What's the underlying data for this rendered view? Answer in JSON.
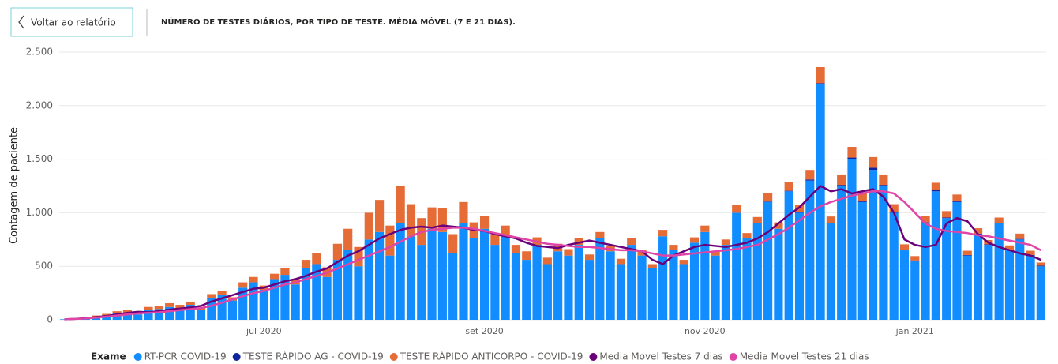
{
  "header": {
    "back_button": "Voltar ao relatório"
  },
  "chart_data": {
    "type": "bar",
    "stacked": true,
    "title": "NÚMERO DE TESTES DIÁRIOS, POR TIPO DE TESTE. MÉDIA MÓVEL (7 E 21 DIAS).",
    "y_label": "Contagem de paciente",
    "legend_title": "Exame",
    "grid": true,
    "legend": "bottom",
    "ylim": [
      0,
      2500
    ],
    "yticks": [
      0,
      500,
      {
        "value": 1000,
        "label": "1.000"
      },
      {
        "value": 1500,
        "label": "1.500"
      },
      {
        "value": 2000,
        "label": "2.000"
      },
      {
        "value": 2500,
        "label": "2.500"
      }
    ],
    "categories": [
      null,
      null,
      null,
      null,
      null,
      null,
      null,
      null,
      null,
      null,
      null,
      null,
      null,
      null,
      null,
      null,
      null,
      null,
      null,
      "jul 2020",
      null,
      null,
      null,
      null,
      null,
      null,
      null,
      null,
      null,
      null,
      null,
      null,
      null,
      null,
      null,
      null,
      null,
      null,
      null,
      null,
      "set 2020",
      null,
      null,
      null,
      null,
      null,
      null,
      null,
      null,
      null,
      null,
      null,
      null,
      null,
      null,
      null,
      null,
      null,
      null,
      null,
      null,
      "nov 2020",
      null,
      null,
      null,
      null,
      null,
      null,
      null,
      null,
      null,
      null,
      null,
      null,
      null,
      null,
      null,
      null,
      null,
      null,
      null,
      "jan 2021",
      null,
      null,
      null,
      null,
      null,
      null,
      null,
      null,
      null,
      null,
      null,
      null
    ],
    "series": [
      {
        "name": "RT-PCR COVID-19",
        "type": "bar",
        "color": "#118DFF",
        "values": [
          5,
          10,
          20,
          30,
          40,
          60,
          70,
          50,
          90,
          100,
          120,
          110,
          140,
          90,
          200,
          230,
          180,
          300,
          350,
          280,
          380,
          420,
          330,
          480,
          520,
          400,
          560,
          650,
          500,
          750,
          820,
          600,
          900,
          780,
          700,
          850,
          820,
          620,
          900,
          760,
          850,
          700,
          780,
          620,
          560,
          700,
          520,
          640,
          600,
          700,
          560,
          760,
          640,
          520,
          700,
          600,
          480,
          780,
          650,
          520,
          720,
          820,
          600,
          700,
          1000,
          760,
          900,
          1100,
          850,
          1200,
          1000,
          1300,
          2200,
          900,
          1250,
          1500,
          1100,
          1400,
          1250,
          1000,
          650,
          550,
          900,
          1200,
          950,
          1100,
          600,
          800,
          700,
          900,
          650,
          750,
          600,
          500
        ]
      },
      {
        "name": "TESTE RÁPIDO AG - COVID-19",
        "type": "bar",
        "color": "#12239E",
        "values": [
          0,
          0,
          0,
          0,
          0,
          0,
          0,
          0,
          0,
          0,
          0,
          0,
          0,
          0,
          0,
          0,
          0,
          0,
          0,
          0,
          0,
          0,
          0,
          0,
          0,
          0,
          0,
          0,
          0,
          0,
          0,
          0,
          0,
          0,
          0,
          0,
          0,
          0,
          0,
          0,
          0,
          0,
          0,
          0,
          0,
          0,
          0,
          0,
          0,
          0,
          0,
          0,
          0,
          0,
          0,
          0,
          0,
          0,
          0,
          0,
          0,
          0,
          0,
          0,
          0,
          0,
          0,
          5,
          0,
          5,
          5,
          10,
          10,
          5,
          10,
          15,
          10,
          20,
          10,
          10,
          5,
          5,
          10,
          10,
          5,
          10,
          5,
          5,
          5,
          5,
          5,
          5,
          5,
          5
        ]
      },
      {
        "name": "TESTE RÁPIDO ANTICORPO - COVID-19",
        "type": "bar",
        "color": "#E66C37",
        "values": [
          0,
          2,
          5,
          10,
          15,
          20,
          25,
          20,
          30,
          30,
          35,
          30,
          30,
          20,
          40,
          40,
          30,
          50,
          50,
          40,
          50,
          60,
          50,
          80,
          100,
          90,
          150,
          200,
          180,
          250,
          300,
          280,
          350,
          300,
          250,
          200,
          220,
          180,
          200,
          150,
          120,
          100,
          100,
          80,
          80,
          70,
          60,
          70,
          60,
          60,
          50,
          60,
          50,
          50,
          60,
          50,
          40,
          60,
          50,
          40,
          50,
          60,
          40,
          50,
          70,
          50,
          60,
          80,
          60,
          80,
          70,
          90,
          150,
          60,
          90,
          100,
          80,
          100,
          90,
          70,
          50,
          40,
          60,
          70,
          60,
          60,
          40,
          50,
          40,
          50,
          40,
          50,
          40,
          30
        ]
      },
      {
        "name": "Media Movel Testes 7 dias",
        "type": "line",
        "color": "#6B007B",
        "values": [
          5,
          8,
          15,
          25,
          35,
          50,
          65,
          75,
          70,
          80,
          95,
          105,
          115,
          130,
          170,
          200,
          230,
          260,
          290,
          300,
          330,
          360,
          380,
          410,
          450,
          480,
          540,
          600,
          640,
          700,
          760,
          800,
          840,
          860,
          870,
          860,
          880,
          870,
          860,
          840,
          830,
          800,
          780,
          760,
          720,
          690,
          680,
          670,
          700,
          720,
          740,
          720,
          700,
          680,
          660,
          640,
          560,
          520,
          600,
          640,
          680,
          700,
          690,
          680,
          700,
          720,
          760,
          820,
          900,
          980,
          1050,
          1150,
          1250,
          1200,
          1220,
          1180,
          1200,
          1220,
          1150,
          1000,
          750,
          700,
          680,
          700,
          900,
          950,
          920,
          800,
          720,
          680,
          650,
          620,
          600,
          560
        ]
      },
      {
        "name": "Media Movel Testes 21 dias",
        "type": "line",
        "color": "#E044A7",
        "values": [
          5,
          8,
          12,
          20,
          30,
          40,
          50,
          60,
          65,
          70,
          80,
          90,
          100,
          110,
          130,
          160,
          190,
          220,
          250,
          270,
          300,
          330,
          350,
          380,
          410,
          440,
          480,
          520,
          560,
          600,
          640,
          680,
          730,
          780,
          820,
          840,
          850,
          860,
          860,
          850,
          830,
          810,
          790,
          770,
          750,
          730,
          710,
          700,
          690,
          680,
          680,
          670,
          660,
          650,
          650,
          640,
          620,
          600,
          600,
          610,
          620,
          630,
          640,
          650,
          660,
          680,
          700,
          750,
          800,
          860,
          930,
          1000,
          1060,
          1100,
          1130,
          1160,
          1180,
          1200,
          1200,
          1180,
          1100,
          1000,
          900,
          850,
          830,
          820,
          810,
          790,
          780,
          760,
          740,
          720,
          700,
          650
        ]
      }
    ]
  }
}
